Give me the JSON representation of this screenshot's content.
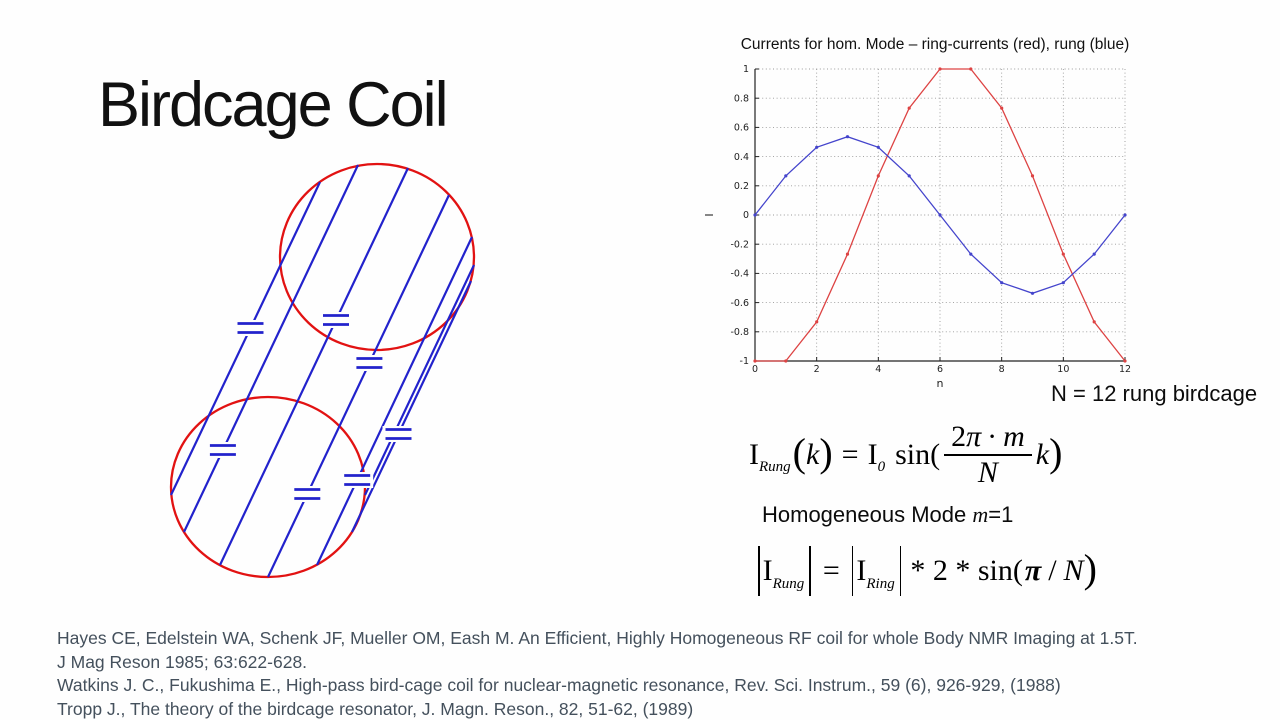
{
  "slide": {
    "title": "Birdcage Coil"
  },
  "chart": {
    "caption": "N = 12 rung birdcage"
  },
  "chart_data": {
    "type": "line",
    "title": "Currents for hom. Mode – ring-currents (red), rung (blue)",
    "xlabel": "n",
    "ylabel": "I",
    "xlim": [
      0,
      12
    ],
    "ylim": [
      -1,
      1
    ],
    "grid": true,
    "legend": "none (colors named in title)",
    "xticks": [
      0,
      2,
      4,
      6,
      8,
      10,
      12
    ],
    "ytick_labels": [
      "-1",
      "-0.8",
      "-0.6",
      "-0.4",
      "-0.2",
      "0",
      "0.2",
      "0.4",
      "0.6",
      "0.8",
      "1"
    ],
    "x": [
      0,
      1,
      2,
      3,
      4,
      5,
      6,
      7,
      8,
      9,
      10,
      11,
      12
    ],
    "series": [
      {
        "name": "ring-currents",
        "color": "#dd4343",
        "values": [
          -1,
          -1,
          -0.732,
          -0.268,
          0.268,
          0.732,
          1,
          1,
          0.732,
          0.268,
          -0.268,
          -0.732,
          -1
        ]
      },
      {
        "name": "rung",
        "color": "#4444cc",
        "values": [
          0,
          0.268,
          0.464,
          0.536,
          0.464,
          0.268,
          0,
          -0.268,
          -0.464,
          -0.536,
          -0.464,
          -0.268,
          0
        ]
      }
    ]
  },
  "diagram": {
    "ring_color": "#e21212",
    "rung_color": "#2222cc"
  },
  "formulas": {
    "f1": {
      "I1": "I",
      "sub1": "Rung",
      "open": "(",
      "k": "k",
      "close": ")",
      "eq": "=",
      "I2": "I",
      "sub2": "0",
      "sin": "sin(",
      "num2": "2",
      "numpi": "π",
      "numdot": "·",
      "numm": "m",
      "den": "N",
      "karg": "k",
      "close2": ")"
    },
    "mode": {
      "prefix": "Homogeneous Mode ",
      "var": "m",
      "suffix": "=1"
    },
    "f2": {
      "I1": "I",
      "sub1": "Rung",
      "eq": "=",
      "I2": "I",
      "sub2": "Ring",
      "mid": "* 2 * sin(",
      "pi": "π",
      "slash": "/",
      "N": "N",
      "close": ")"
    }
  },
  "references": {
    "lines": [
      "Hayes CE, Edelstein WA, Schenk JF, Mueller OM, Eash M. An Efficient, Highly Homogeneous RF coil for whole Body NMR Imaging at 1.5T.",
      "J Mag Reson 1985; 63:622-628.",
      "Watkins J. C., Fukushima E., High-pass bird-cage coil for nuclear-magnetic resonance, Rev. Sci. Instrum., 59 (6), 926-929, (1988)",
      "Tropp J., The theory of the birdcage resonator, J. Magn. Reson., 82, 51-62, (1989)"
    ]
  }
}
